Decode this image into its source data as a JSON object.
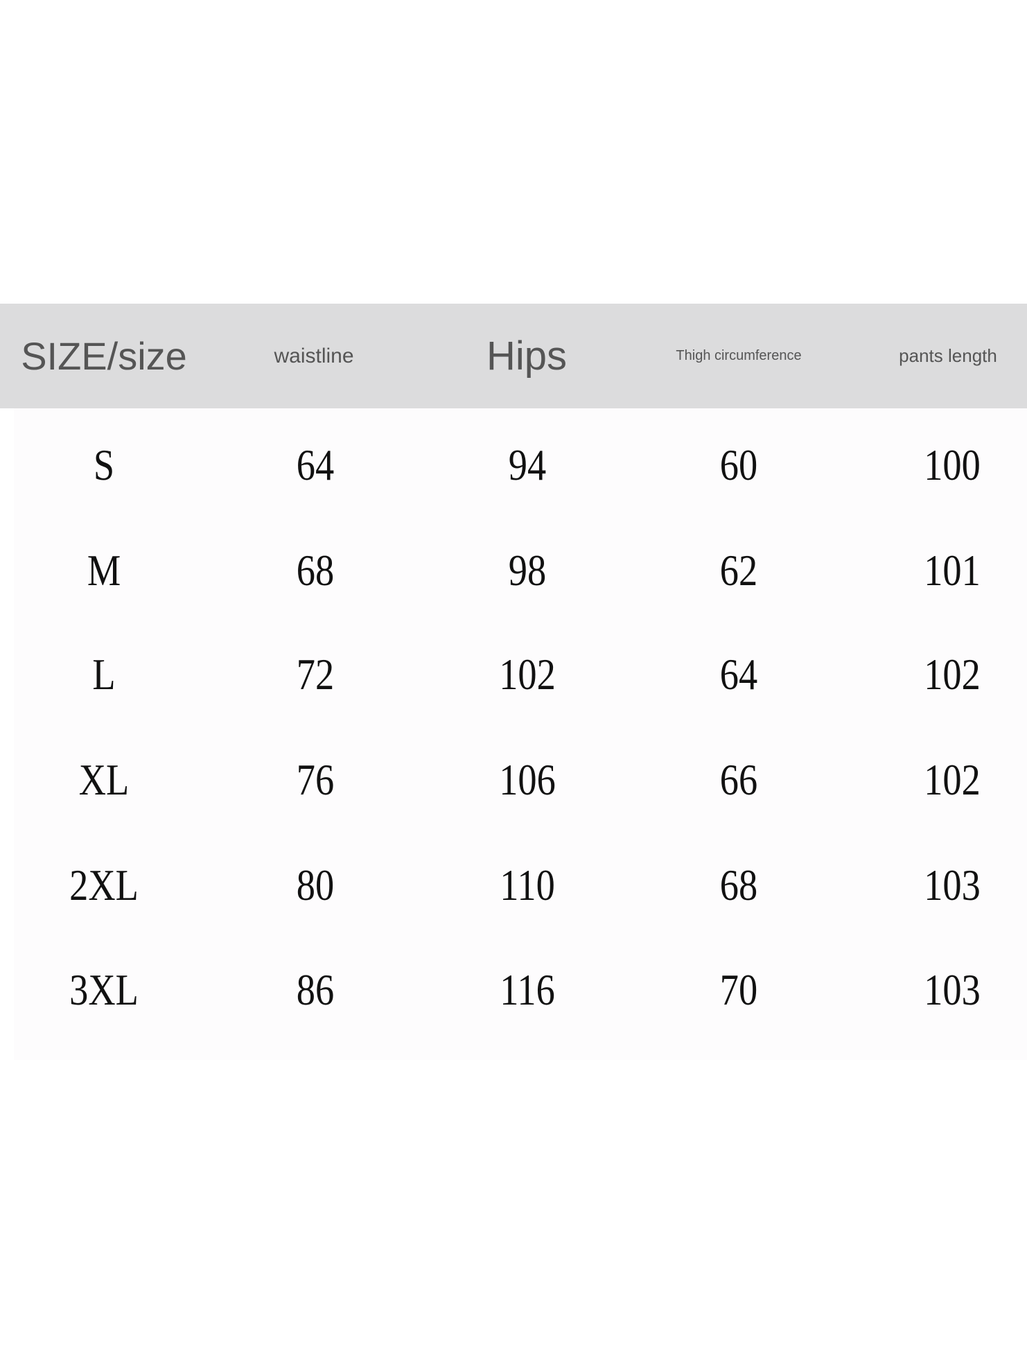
{
  "table": {
    "headers": [
      "SIZE/size",
      "waistline",
      "Hips",
      "Thigh circumference",
      "pants length"
    ],
    "rows": [
      [
        "S",
        "64",
        "94",
        "60",
        "100"
      ],
      [
        "M",
        "68",
        "98",
        "62",
        "101"
      ],
      [
        "L",
        "72",
        "102",
        "64",
        "102"
      ],
      [
        "XL",
        "76",
        "106",
        "66",
        "102"
      ],
      [
        "2XL",
        "80",
        "110",
        "68",
        "103"
      ],
      [
        "3XL",
        "86",
        "116",
        "70",
        "103"
      ]
    ]
  },
  "colors": {
    "header_bg": "#dcdcdd",
    "header_text": "#555555",
    "body_text": "#111111"
  }
}
